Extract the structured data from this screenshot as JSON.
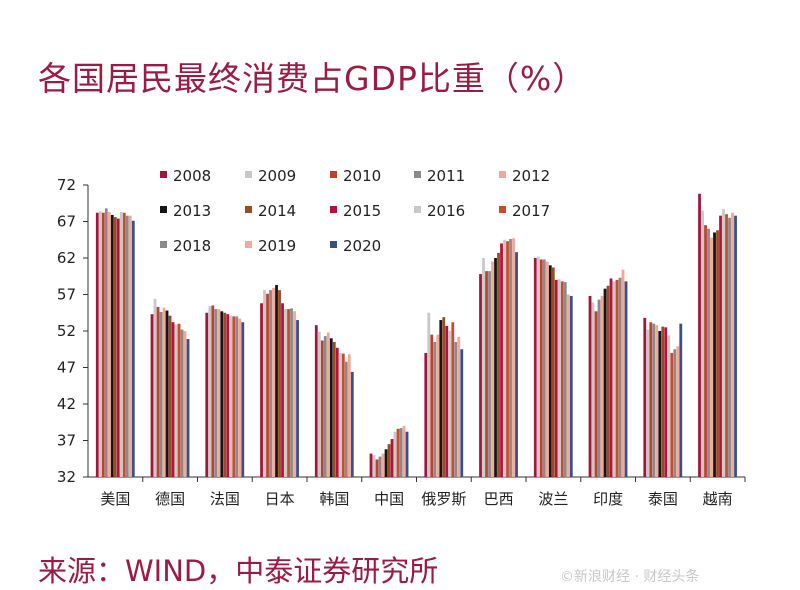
{
  "title": "各国居民最终消费占GDP比重（%）",
  "source": "来源：WIND，中泰证券研究所",
  "watermark": "©新浪财经 · 财经头条",
  "chart_data": {
    "type": "bar",
    "title": "各国居民最终消费占GDP比重（%）",
    "xlabel": "",
    "ylabel": "",
    "ylim": [
      32,
      72
    ],
    "yticks": [
      32,
      37,
      42,
      47,
      52,
      57,
      62,
      67,
      72
    ],
    "legend_position": "top-left",
    "categories": [
      "美国",
      "德国",
      "法国",
      "日本",
      "韩国",
      "中国",
      "俄罗斯",
      "巴西",
      "波兰",
      "印度",
      "泰国",
      "越南"
    ],
    "series": [
      {
        "name": "2008",
        "color": "#a3163c",
        "values": [
          68.2,
          54.3,
          54.5,
          55.8,
          52.8,
          35.2,
          49.0,
          59.8,
          62.0,
          56.8,
          53.8,
          70.8
        ]
      },
      {
        "name": "2009",
        "color": "#c8c8c8",
        "values": [
          68.4,
          56.4,
          55.4,
          57.6,
          51.9,
          35.0,
          54.5,
          62.0,
          62.2,
          55.9,
          52.2,
          68.5
        ]
      },
      {
        "name": "2010",
        "color": "#c0402e",
        "values": [
          68.2,
          55.3,
          55.5,
          57.1,
          50.7,
          34.4,
          51.5,
          60.2,
          61.8,
          54.7,
          53.2,
          66.5
        ]
      },
      {
        "name": "2011",
        "color": "#8a8a8a",
        "values": [
          68.8,
          54.6,
          55.0,
          57.6,
          51.3,
          34.8,
          50.5,
          60.2,
          61.8,
          56.3,
          53.0,
          66.0
        ]
      },
      {
        "name": "2012",
        "color": "#f2a797",
        "values": [
          68.3,
          55.2,
          55.0,
          57.9,
          51.8,
          35.2,
          51.5,
          61.5,
          61.5,
          56.8,
          52.8,
          64.8
        ]
      },
      {
        "name": "2013",
        "color": "#151515",
        "values": [
          67.9,
          54.8,
          54.7,
          58.3,
          51.0,
          35.8,
          53.5,
          62.0,
          61.0,
          57.8,
          52.0,
          65.5
        ]
      },
      {
        "name": "2014",
        "color": "#9b4a26",
        "values": [
          67.6,
          54.1,
          54.5,
          57.6,
          50.5,
          36.5,
          53.9,
          62.7,
          60.7,
          58.2,
          52.6,
          65.8
        ]
      },
      {
        "name": "2015",
        "color": "#b3123a",
        "values": [
          67.4,
          53.2,
          54.3,
          55.8,
          49.7,
          37.2,
          52.7,
          64.0,
          59.0,
          59.2,
          52.5,
          67.8
        ]
      },
      {
        "name": "2016",
        "color": "#c8c8c8",
        "values": [
          68.3,
          52.9,
          54.1,
          55.0,
          49.0,
          38.2,
          52.0,
          64.5,
          59.1,
          58.8,
          51.4,
          68.7
        ]
      },
      {
        "name": "2017",
        "color": "#c94b2c",
        "values": [
          68.2,
          53.0,
          54.0,
          55.0,
          48.9,
          38.6,
          53.2,
          64.3,
          58.8,
          59.0,
          49.0,
          68.0
        ]
      },
      {
        "name": "2018",
        "color": "#8a8a8a",
        "values": [
          67.8,
          52.2,
          54.0,
          55.1,
          47.8,
          38.7,
          50.5,
          64.6,
          58.7,
          59.3,
          49.5,
          67.5
        ]
      },
      {
        "name": "2019",
        "color": "#f2a797",
        "values": [
          67.8,
          52.0,
          53.7,
          54.7,
          48.8,
          39.0,
          51.2,
          64.7,
          57.0,
          60.4,
          49.9,
          68.2
        ]
      },
      {
        "name": "2020",
        "color": "#3a4f8a",
        "values": [
          67.1,
          50.9,
          53.2,
          53.5,
          46.4,
          38.2,
          49.5,
          62.8,
          56.8,
          58.8,
          53.0,
          67.8
        ]
      }
    ]
  }
}
